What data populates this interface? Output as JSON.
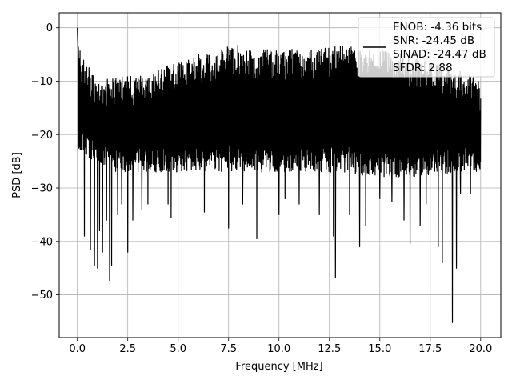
{
  "chart_data": {
    "type": "line",
    "title": "",
    "xlabel": "Frequency [MHz]",
    "ylabel": "PSD [dB]",
    "xlim": [
      -0.9,
      21.0
    ],
    "ylim": [
      -58.0,
      2.8
    ],
    "xticks": [
      0.0,
      2.5,
      5.0,
      7.5,
      10.0,
      12.5,
      15.0,
      17.5,
      20.0
    ],
    "xtick_labels": [
      "0.0",
      "2.5",
      "5.0",
      "7.5",
      "10.0",
      "12.5",
      "15.0",
      "17.5",
      "20.0"
    ],
    "yticks": [
      0,
      -10,
      -20,
      -30,
      -40,
      -50
    ],
    "ytick_labels": [
      "0",
      "−10",
      "−20",
      "−30",
      "−40",
      "−50"
    ],
    "grid": true,
    "legend_position": "top-right",
    "legend": {
      "entries": [
        "ENOB: -4.36 bits",
        "SNR: -24.45 dB",
        "SINAD: -24.47 dB",
        "SFDR: 2.88"
      ]
    },
    "series": [
      {
        "color": "#000000",
        "x_range": [
          0.0,
          20.0
        ],
        "peak": {
          "x": 0.0,
          "y": 0.0
        },
        "upper_envelope": [
          [
            0.0,
            -3
          ],
          [
            0.5,
            -7
          ],
          [
            1.0,
            -10
          ],
          [
            2.0,
            -9
          ],
          [
            3.0,
            -9
          ],
          [
            4.0,
            -8
          ],
          [
            5.0,
            -6
          ],
          [
            6.0,
            -5
          ],
          [
            7.0,
            -4
          ],
          [
            8.0,
            -3
          ],
          [
            9.0,
            -4
          ],
          [
            10.0,
            -4
          ],
          [
            11.0,
            -4
          ],
          [
            12.0,
            -4
          ],
          [
            13.0,
            -3
          ],
          [
            14.0,
            -4
          ],
          [
            15.0,
            -4
          ],
          [
            16.0,
            -5
          ],
          [
            17.0,
            -6
          ],
          [
            18.0,
            -7
          ],
          [
            19.0,
            -8
          ],
          [
            20.0,
            -10
          ]
        ],
        "lower_envelope": [
          [
            0.0,
            -23
          ],
          [
            1.0,
            -26
          ],
          [
            2.0,
            -27
          ],
          [
            3.0,
            -27
          ],
          [
            5.0,
            -27
          ],
          [
            7.0,
            -27
          ],
          [
            10.0,
            -27
          ],
          [
            13.0,
            -27
          ],
          [
            15.0,
            -28
          ],
          [
            17.0,
            -28
          ],
          [
            19.0,
            -27
          ],
          [
            20.0,
            -27
          ]
        ],
        "deep_nulls": [
          [
            0.35,
            -39
          ],
          [
            0.65,
            -41.5
          ],
          [
            0.85,
            -44.5
          ],
          [
            1.0,
            -45
          ],
          [
            1.1,
            -38
          ],
          [
            1.25,
            -42
          ],
          [
            1.45,
            -36
          ],
          [
            1.6,
            -47.3
          ],
          [
            1.7,
            -44.5
          ],
          [
            2.0,
            -35
          ],
          [
            2.2,
            -33
          ],
          [
            2.5,
            -42
          ],
          [
            2.75,
            -36
          ],
          [
            3.2,
            -34
          ],
          [
            3.5,
            -33
          ],
          [
            4.5,
            -33
          ],
          [
            4.65,
            -35.5
          ],
          [
            6.3,
            -34.5
          ],
          [
            7.5,
            -37.5
          ],
          [
            8.2,
            -33
          ],
          [
            8.9,
            -39.5
          ],
          [
            10.0,
            -35
          ],
          [
            10.3,
            -32
          ],
          [
            11.0,
            -33
          ],
          [
            12.0,
            -35
          ],
          [
            12.7,
            -39
          ],
          [
            12.8,
            -46.8
          ],
          [
            13.5,
            -35
          ],
          [
            14.0,
            -41
          ],
          [
            14.3,
            -37
          ],
          [
            15.0,
            -32
          ],
          [
            15.6,
            -32.5
          ],
          [
            16.2,
            -36
          ],
          [
            16.5,
            -40.5
          ],
          [
            17.0,
            -37
          ],
          [
            17.3,
            -33
          ],
          [
            17.9,
            -41
          ],
          [
            18.1,
            -44
          ],
          [
            18.6,
            -55.2
          ],
          [
            18.8,
            -45
          ],
          [
            19.0,
            -31
          ],
          [
            19.5,
            -31
          ]
        ]
      }
    ]
  }
}
